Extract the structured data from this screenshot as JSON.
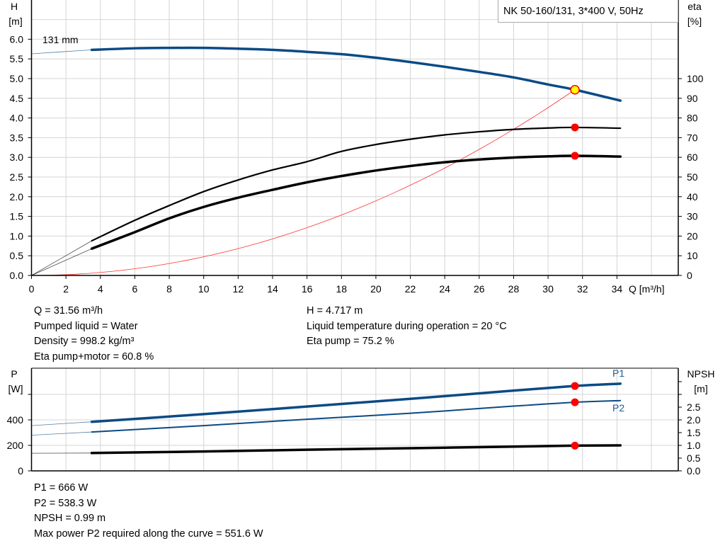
{
  "chart_data": [
    {
      "type": "line",
      "title": "NK 50-160/131, 3*400 V, 50Hz",
      "xlabel": "Q [m³/h]",
      "ylabel_left": [
        "H",
        "[m]"
      ],
      "ylabel_right": [
        "eta",
        "[%]"
      ],
      "xlim": [
        0,
        37.6
      ],
      "ylim_left": [
        0,
        7
      ],
      "ylim_right": [
        0,
        140
      ],
      "x_ticks": [
        "0",
        "2",
        "4",
        "6",
        "8",
        "10",
        "12",
        "14",
        "16",
        "18",
        "20",
        "22",
        "24",
        "26",
        "28",
        "30",
        "32",
        "34"
      ],
      "y_ticks_left": [
        "0.0",
        "0.5",
        "1.0",
        "1.5",
        "2.0",
        "2.5",
        "3.0",
        "3.5",
        "4.0",
        "4.5",
        "5.0",
        "5.5",
        "6.0"
      ],
      "y_ticks_right": [
        "0",
        "10",
        "20",
        "30",
        "40",
        "50",
        "60",
        "70",
        "80",
        "90",
        "100"
      ],
      "grid": true,
      "annotation": "131 mm",
      "series": [
        {
          "key": "H",
          "axis": "left",
          "color": "#0b4a85",
          "x": [
            0,
            3.5,
            6,
            8,
            10,
            12,
            14,
            16,
            18,
            20,
            22,
            24,
            26,
            28,
            30,
            31.56,
            34.2
          ],
          "y": [
            5.63,
            5.73,
            5.77,
            5.78,
            5.78,
            5.76,
            5.73,
            5.68,
            5.62,
            5.53,
            5.42,
            5.3,
            5.17,
            5.03,
            4.85,
            4.717,
            4.44
          ]
        },
        {
          "key": "eta_pump",
          "axis": "right",
          "color": "#000000",
          "x": [
            0,
            3.5,
            6,
            8,
            10,
            12,
            14,
            16,
            18,
            20,
            22,
            24,
            26,
            28,
            30,
            31.56,
            34.2
          ],
          "y": [
            0,
            17.6,
            28,
            35.5,
            42.6,
            48.5,
            53.6,
            57.8,
            63,
            66.5,
            69.2,
            71.4,
            73,
            74.2,
            74.9,
            75.2,
            74.8
          ]
        },
        {
          "key": "eta_pump_motor",
          "axis": "right",
          "color": "#000000",
          "x": [
            0,
            3.5,
            6,
            8,
            10,
            12,
            14,
            16,
            18,
            20,
            22,
            24,
            26,
            28,
            30,
            31.56,
            34.2
          ],
          "y": [
            0,
            13.6,
            22,
            29,
            34.8,
            39.5,
            43.5,
            47.3,
            50.5,
            53.3,
            55.6,
            57.5,
            58.9,
            59.9,
            60.5,
            60.8,
            60.4
          ]
        },
        {
          "key": "system_curve",
          "axis": "left",
          "color": "#ff3030",
          "equation": "H = 0.004736 * Q^2",
          "x_range": [
            0,
            31.56
          ]
        }
      ],
      "duty_point": {
        "Q": 31.56,
        "H": 4.717,
        "eta_pump": 75.2,
        "eta_pump_motor": 60.8
      }
    },
    {
      "type": "line",
      "xlim": [
        0,
        37.6
      ],
      "ylabel_left": [
        "P",
        "[W]"
      ],
      "ylabel_right": [
        "NPSH",
        "[m]"
      ],
      "ylim_left": [
        0,
        800
      ],
      "ylim_right": [
        0,
        4
      ],
      "y_ticks_left": [
        "0",
        "200",
        "400"
      ],
      "y_ticks_right": [
        "0.0",
        "0.5",
        "1.0",
        "1.5",
        "2.0",
        "2.5"
      ],
      "grid": true,
      "series": [
        {
          "name": "P1",
          "axis": "left",
          "color": "#0b4a85",
          "x": [
            0,
            3.5,
            10,
            16,
            22,
            28,
            31.56,
            34.2
          ],
          "y": [
            355,
            385,
            445,
            505,
            565,
            630,
            666,
            684
          ]
        },
        {
          "name": "P2",
          "axis": "left",
          "color": "#0b4a85",
          "x": [
            0,
            3.5,
            10,
            16,
            22,
            28,
            31.56,
            34.2
          ],
          "y": [
            280,
            305,
            355,
            405,
            452,
            508,
            538.3,
            551.6
          ]
        },
        {
          "key": "NPSH",
          "axis": "right",
          "color": "#000000",
          "x": [
            0,
            3.5,
            10,
            16,
            22,
            28,
            31.56,
            34.2
          ],
          "y": [
            0.69,
            0.7,
            0.76,
            0.83,
            0.89,
            0.95,
            0.99,
            1.0
          ]
        }
      ],
      "duty_point": {
        "Q": 31.56,
        "P1": 666,
        "P2": 538.3,
        "NPSH": 0.99
      }
    }
  ],
  "info_top": {
    "left": [
      "Q = 31.56 m³/h",
      "Pumped liquid = Water",
      "Density = 998.2 kg/m³",
      "Eta pump+motor = 60.8 %"
    ],
    "right": [
      "H = 4.717 m",
      "Liquid temperature during operation = 20 °C",
      "Eta pump = 75.2 %"
    ]
  },
  "info_bottom": [
    "P1 = 666 W",
    "P2 = 538.3 W",
    "NPSH = 0.99 m",
    "Max power P2 required along the curve = 551.6 W"
  ],
  "colors": {
    "blue": "#0b4a85",
    "red": "#ff0000",
    "duty_fill": "#ffff00",
    "grid": "#d4d4d4"
  }
}
